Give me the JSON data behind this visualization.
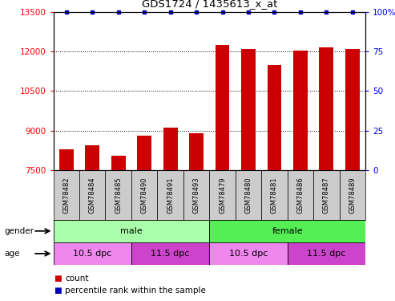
{
  "title": "GDS1724 / 1435613_x_at",
  "samples": [
    "GSM78482",
    "GSM78484",
    "GSM78485",
    "GSM78490",
    "GSM78491",
    "GSM78493",
    "GSM78479",
    "GSM78480",
    "GSM78481",
    "GSM78486",
    "GSM78487",
    "GSM78489"
  ],
  "counts": [
    8300,
    8450,
    8050,
    8800,
    9100,
    8900,
    12250,
    12100,
    11500,
    12050,
    12150,
    12100
  ],
  "bar_color": "#cc0000",
  "dot_color": "#0000bb",
  "ylim_left": [
    7500,
    13500
  ],
  "yticks_left": [
    7500,
    9000,
    10500,
    12000,
    13500
  ],
  "ylim_right": [
    0,
    100
  ],
  "yticks_right": [
    0,
    25,
    50,
    75,
    100
  ],
  "gender_groups": [
    {
      "label": "male",
      "start": 0,
      "end": 6,
      "color": "#aaffaa"
    },
    {
      "label": "female",
      "start": 6,
      "end": 12,
      "color": "#55ee55"
    }
  ],
  "age_groups": [
    {
      "label": "10.5 dpc",
      "start": 0,
      "end": 3,
      "color": "#ee88ee"
    },
    {
      "label": "11.5 dpc",
      "start": 3,
      "end": 6,
      "color": "#cc44cc"
    },
    {
      "label": "10.5 dpc",
      "start": 6,
      "end": 9,
      "color": "#ee88ee"
    },
    {
      "label": "11.5 dpc",
      "start": 9,
      "end": 12,
      "color": "#cc44cc"
    }
  ],
  "label_bg_color": "#cccccc",
  "legend": [
    {
      "label": "count",
      "color": "#cc0000"
    },
    {
      "label": "percentile rank within the sample",
      "color": "#0000bb"
    }
  ]
}
